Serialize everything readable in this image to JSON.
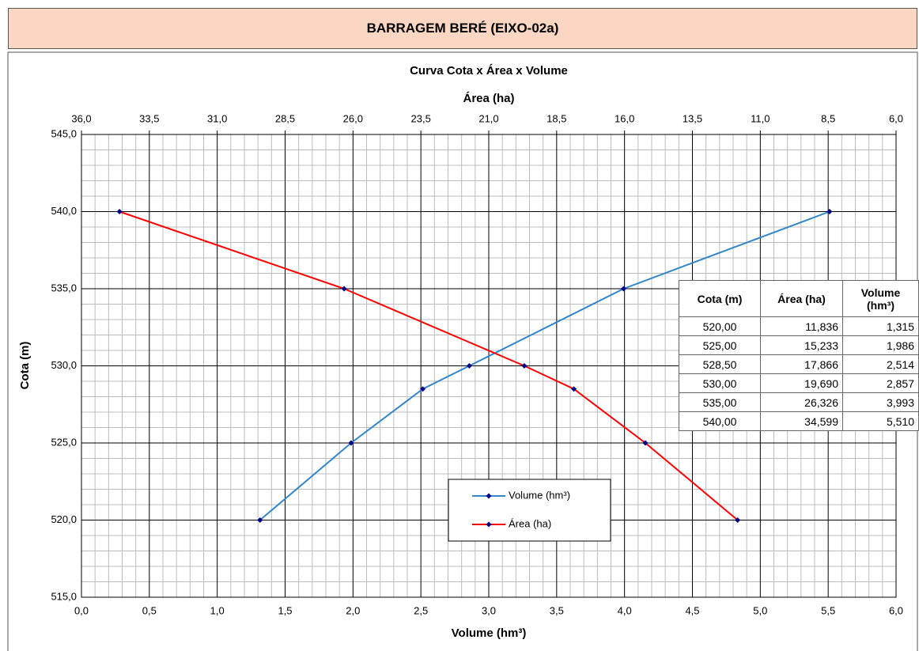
{
  "header": {
    "title": "BARRAGEM BERÉ (EIXO-02a)"
  },
  "chart_data": {
    "type": "line",
    "title": "Curva Cota x Área x Volume",
    "xlabel": "Volume (hm³)",
    "x2label": "Área (ha)",
    "ylabel": "Cota (m)",
    "xlim": [
      0,
      6
    ],
    "xticks": [
      {
        "value": 0,
        "label": "0,0"
      },
      {
        "value": 0.5,
        "label": "0,5"
      },
      {
        "value": 1,
        "label": "1,0"
      },
      {
        "value": 1.5,
        "label": "1,5"
      },
      {
        "value": 2,
        "label": "2,0"
      },
      {
        "value": 2.5,
        "label": "2,5"
      },
      {
        "value": 3,
        "label": "3,0"
      },
      {
        "value": 3.5,
        "label": "3,5"
      },
      {
        "value": 4,
        "label": "4,0"
      },
      {
        "value": 4.5,
        "label": "4,5"
      },
      {
        "value": 5,
        "label": "5,0"
      },
      {
        "value": 5.5,
        "label": "5,5"
      },
      {
        "value": 6,
        "label": "6,0"
      }
    ],
    "x2lim": [
      36,
      6
    ],
    "x2ticks": [
      {
        "value": 36,
        "label": "36,0"
      },
      {
        "value": 33.5,
        "label": "33,5"
      },
      {
        "value": 31,
        "label": "31,0"
      },
      {
        "value": 28.5,
        "label": "28,5"
      },
      {
        "value": 26,
        "label": "26,0"
      },
      {
        "value": 23.5,
        "label": "23,5"
      },
      {
        "value": 21,
        "label": "21,0"
      },
      {
        "value": 18.5,
        "label": "18,5"
      },
      {
        "value": 16,
        "label": "16,0"
      },
      {
        "value": 13.5,
        "label": "13,5"
      },
      {
        "value": 11,
        "label": "11,0"
      },
      {
        "value": 8.5,
        "label": "8,5"
      },
      {
        "value": 6,
        "label": "6,0"
      }
    ],
    "ylim": [
      515,
      545
    ],
    "yticks": [
      {
        "value": 515,
        "label": "515,0"
      },
      {
        "value": 520,
        "label": "520,0"
      },
      {
        "value": 525,
        "label": "525,0"
      },
      {
        "value": 530,
        "label": "530,0"
      },
      {
        "value": 535,
        "label": "535,0"
      },
      {
        "value": 540,
        "label": "540,0"
      },
      {
        "value": 545,
        "label": "545,0"
      }
    ],
    "grid": true,
    "minor_grid": true,
    "legend": "lower center",
    "marker_color": "#00008b",
    "series": [
      {
        "name": "Volume (hm³)",
        "color": "#2f86c8",
        "x": [
          1.315,
          1.986,
          2.514,
          2.857,
          3.993,
          5.51
        ],
        "values": [
          520,
          525,
          528.5,
          530,
          535,
          540
        ]
      },
      {
        "name": "Área (ha)",
        "color": "#ff0000",
        "axis": "x2",
        "x": [
          11.836,
          15.233,
          17.866,
          19.69,
          26.326,
          34.599
        ],
        "values": [
          520,
          525,
          528.5,
          530,
          535,
          540
        ]
      }
    ]
  },
  "table": {
    "columns": [
      "Cota (m)",
      "Área (ha)",
      "Volume (hm³)"
    ],
    "rows": [
      [
        "520,00",
        "11,836",
        "1,315"
      ],
      [
        "525,00",
        "15,233",
        "1,986"
      ],
      [
        "528,50",
        "17,866",
        "2,514"
      ],
      [
        "530,00",
        "19,690",
        "2,857"
      ],
      [
        "535,00",
        "26,326",
        "3,993"
      ],
      [
        "540,00",
        "34,599",
        "5,510"
      ]
    ]
  }
}
